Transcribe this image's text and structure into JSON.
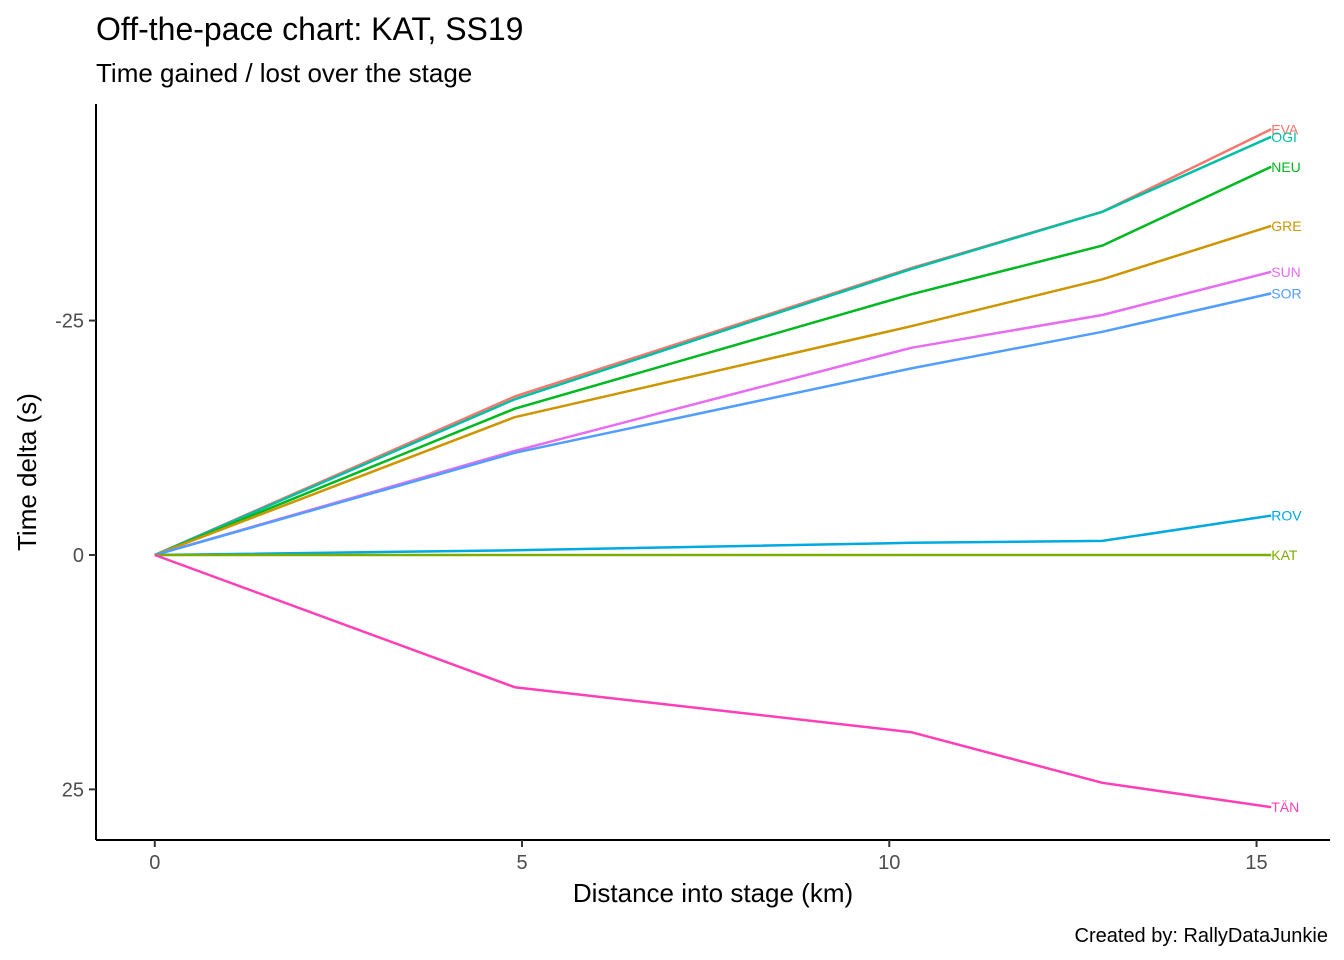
{
  "chart_data": {
    "type": "line",
    "title": "Off-the-pace chart: KAT, SS19",
    "subtitle": "Time gained / lost over the stage",
    "xlabel": "Distance into stage (km)",
    "ylabel": "Time delta (s)",
    "caption": "Created by: RallyDataJunkie",
    "xlim": [
      -0.8,
      16.0
    ],
    "ylim": [
      -48.1,
      30.4
    ],
    "y_reversed": true,
    "grid": false,
    "legend": "none (direct labels at line ends)",
    "x_ticks": [
      {
        "value": 0,
        "label": "0"
      },
      {
        "value": 5,
        "label": "5"
      },
      {
        "value": 10,
        "label": "10"
      },
      {
        "value": 15,
        "label": "15"
      }
    ],
    "y_ticks": [
      {
        "value": -25,
        "label": "-25"
      },
      {
        "value": 0,
        "label": "0"
      },
      {
        "value": 25,
        "label": "25"
      }
    ],
    "x": [
      0,
      4.9,
      10.3,
      12.9,
      15.2
    ],
    "series": [
      {
        "name": "EVA",
        "color": "#F8766D",
        "values": [
          0,
          -16.9,
          -30.6,
          -36.6,
          -45.4
        ]
      },
      {
        "name": "OGI",
        "color": "#00BFA4",
        "values": [
          0,
          -16.6,
          -30.5,
          -36.6,
          -44.6
        ]
      },
      {
        "name": "NEU",
        "color": "#00B81F",
        "values": [
          0,
          -15.6,
          -27.8,
          -33.0,
          -41.4
        ]
      },
      {
        "name": "GRE",
        "color": "#CD9600",
        "values": [
          0,
          -14.7,
          -24.4,
          -29.4,
          -35.1
        ]
      },
      {
        "name": "SUN",
        "color": "#E76BF3",
        "values": [
          0,
          -11.1,
          -22.1,
          -25.6,
          -30.2
        ]
      },
      {
        "name": "SOR",
        "color": "#529EFF",
        "values": [
          0,
          -10.9,
          -19.9,
          -23.8,
          -27.9
        ]
      },
      {
        "name": "ROV",
        "color": "#00A9E0",
        "values": [
          0,
          -0.5,
          -1.3,
          -1.5,
          -4.2
        ]
      },
      {
        "name": "KAT",
        "color": "#7CAE00",
        "values": [
          0,
          0,
          0,
          0,
          0
        ]
      },
      {
        "name": "TÄN",
        "color": "#FF3FB6",
        "values": [
          0,
          14.1,
          18.9,
          24.3,
          26.9
        ]
      }
    ]
  }
}
